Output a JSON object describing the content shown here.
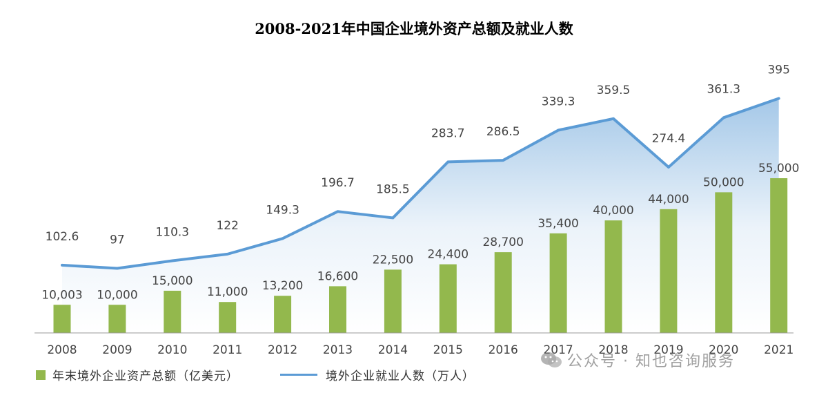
{
  "chart_data": {
    "type": "bar+line",
    "title": "2008-2021年中国企业境外资产总额及就业人数",
    "categories": [
      "2008",
      "2009",
      "2010",
      "2011",
      "2012",
      "2013",
      "2014",
      "2015",
      "2016",
      "2017",
      "2018",
      "2019",
      "2020",
      "2021"
    ],
    "series": [
      {
        "name": "年末境外企业资产总额（亿美元）",
        "type": "bar",
        "color": "#93b84d",
        "values": [
          10003,
          10000,
          15000,
          11000,
          13200,
          16600,
          22500,
          24400,
          28700,
          35400,
          40000,
          44000,
          50000,
          55000
        ],
        "labels": [
          "10,003",
          "10,000",
          "15,000",
          "11,000",
          "13,200",
          "16,600",
          "22,500",
          "24,400",
          "28,700",
          "35,400",
          "40,000",
          "44,000",
          "50,000",
          "55,000"
        ]
      },
      {
        "name": "境外企业就业人数（万人）",
        "type": "line",
        "color": "#5b9bd5",
        "values": [
          102.6,
          97,
          110.3,
          122,
          149.3,
          196.7,
          185.5,
          283.7,
          286.5,
          339.3,
          359.5,
          274.4,
          361.3,
          395
        ],
        "labels": [
          "102.6",
          "97",
          "110.3",
          "122",
          "149.3",
          "196.7",
          "185.5",
          "283.7",
          "286.5",
          "339.3",
          "359.5",
          "274.4",
          "361.3",
          "395"
        ]
      }
    ],
    "grid": false,
    "legend_position": "bottom-left"
  },
  "watermark": {
    "text": "公众号 · 知也咨询服务",
    "icon": "wechat-icon"
  }
}
